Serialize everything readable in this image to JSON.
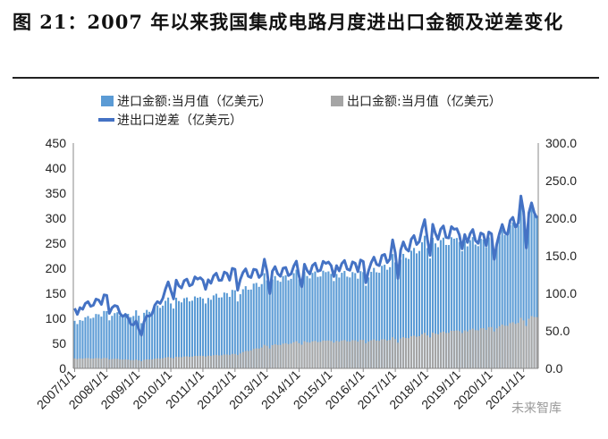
{
  "title": "图 21：2007 年以来我国集成电路月度进出口金额及逆差变化",
  "watermark": "未来智库",
  "chart_data": {
    "type": "bar",
    "title": "图 21：2007 年以来我国集成电路月度进出口金额及逆差变化",
    "legend": [
      "进口金额:当月值（亿美元）",
      "出口金额:当月值（亿美元）",
      "进出口逆差（亿美元）"
    ],
    "legend_position": "top",
    "y_left": {
      "label": "",
      "lim": [
        0,
        450
      ],
      "ticks": [
        "0",
        "50",
        "100",
        "150",
        "200",
        "250",
        "300",
        "350",
        "400",
        "450"
      ]
    },
    "y_right": {
      "label": "",
      "lim": [
        0,
        300
      ],
      "ticks": [
        "0.0",
        "50.0",
        "100.0",
        "150.0",
        "200.0",
        "250.0",
        "300.0"
      ]
    },
    "x_ticks": [
      "2007/1/1",
      "2008/1/1",
      "2009/1/1",
      "2010/1/1",
      "2011/1/1",
      "2012/1/1",
      "2013/1/1",
      "2014/1/1",
      "2015/1/1",
      "2016/1/1",
      "2017/1/1",
      "2018/1/1",
      "2019/1/1",
      "2020/1/1",
      "2021/1/1"
    ],
    "colors": {
      "import": "#5b9bd5",
      "export": "#a5a5a5",
      "deficit": "#4472c4"
    },
    "start_month": "2007/1",
    "series": [
      {
        "name": "进口金额:当月值（亿美元）",
        "axis": "left",
        "kind": "bar",
        "annual_anchors": [
          95,
          110,
          105,
          135,
          140,
          150,
          175,
          185,
          190,
          185,
          210,
          250,
          255,
          250,
          300,
          340
        ]
      },
      {
        "name": "出口金额:当月值（亿美元）",
        "axis": "left",
        "kind": "bar",
        "annual_anchors": [
          20,
          20,
          16,
          22,
          25,
          28,
          45,
          52,
          55,
          55,
          58,
          68,
          75,
          80,
          95,
          120
        ]
      },
      {
        "name": "进出口逆差（亿美元）",
        "axis": "right",
        "kind": "line",
        "annual_anchors": [
          80,
          92,
          52,
          110,
          118,
          125,
          128,
          130,
          138,
          135,
          152,
          182,
          180,
          170,
          205,
          220
        ]
      }
    ]
  }
}
